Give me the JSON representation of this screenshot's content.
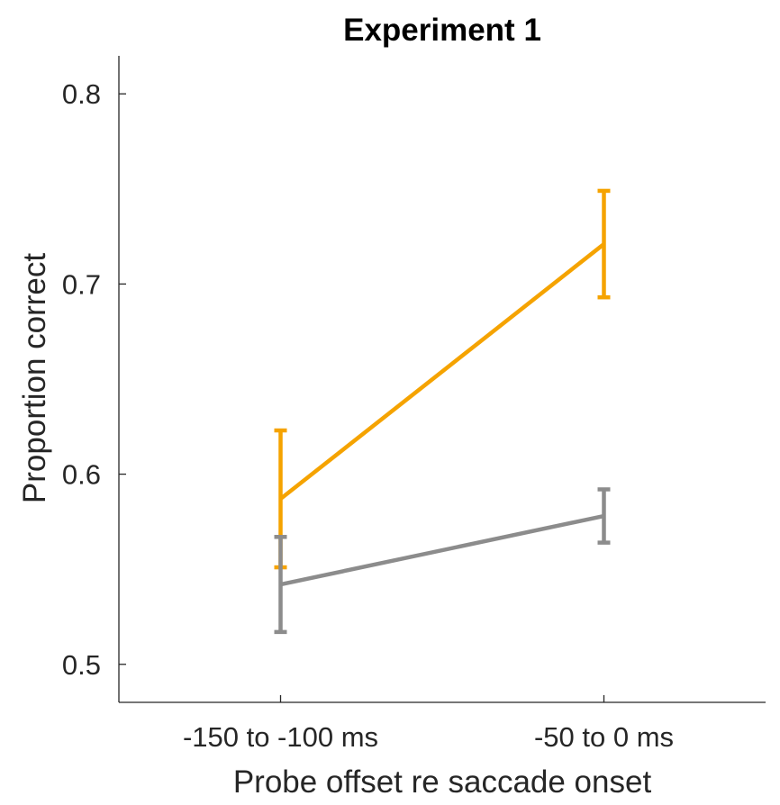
{
  "chart_data": {
    "type": "line",
    "title": "Experiment 1",
    "xlabel": "Probe offset re saccade onset",
    "ylabel": "Proportion correct",
    "categories": [
      "-150 to -100 ms",
      "-50 to 0 ms"
    ],
    "xlim": [
      0.5,
      2.5
    ],
    "ylim": [
      0.48,
      0.82
    ],
    "yticks": [
      0.5,
      0.6,
      0.7,
      0.8
    ],
    "ytick_labels": [
      "0.5",
      "0.6",
      "0.7",
      "0.8"
    ],
    "grid": false,
    "legend": "none",
    "series": [
      {
        "color": "#F5A300",
        "values": [
          0.587,
          0.721
        ],
        "err_low": [
          0.551,
          0.693
        ],
        "err_high": [
          0.623,
          0.749
        ]
      },
      {
        "color": "#8C8C8C",
        "values": [
          0.542,
          0.578
        ],
        "err_low": [
          0.517,
          0.564
        ],
        "err_high": [
          0.567,
          0.592
        ]
      }
    ]
  }
}
